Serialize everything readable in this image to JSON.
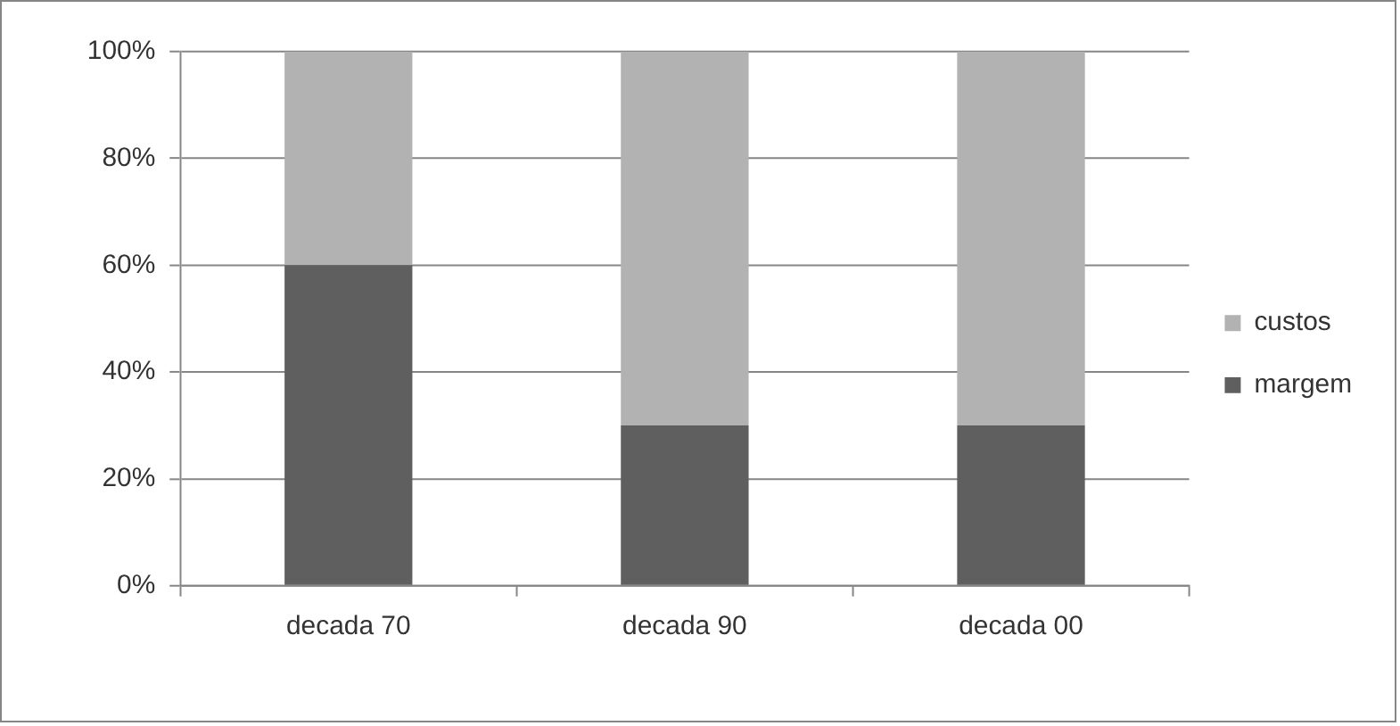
{
  "chart_data": {
    "type": "bar",
    "stacked": true,
    "categories": [
      "decada 70",
      "decada 90",
      "decada 00"
    ],
    "series": [
      {
        "name": "margem",
        "color": "#5f5f5f",
        "values": [
          60,
          30,
          30
        ]
      },
      {
        "name": "custos",
        "color": "#b2b2b2",
        "values": [
          40,
          70,
          70
        ]
      }
    ],
    "ylim": [
      0,
      100
    ],
    "yticks": [
      {
        "value": 0,
        "label": "0%"
      },
      {
        "value": 20,
        "label": "20%"
      },
      {
        "value": 40,
        "label": "40%"
      },
      {
        "value": 60,
        "label": "60%"
      },
      {
        "value": 80,
        "label": "80%"
      },
      {
        "value": 100,
        "label": "100%"
      }
    ],
    "grid": "y",
    "legend": "right"
  }
}
